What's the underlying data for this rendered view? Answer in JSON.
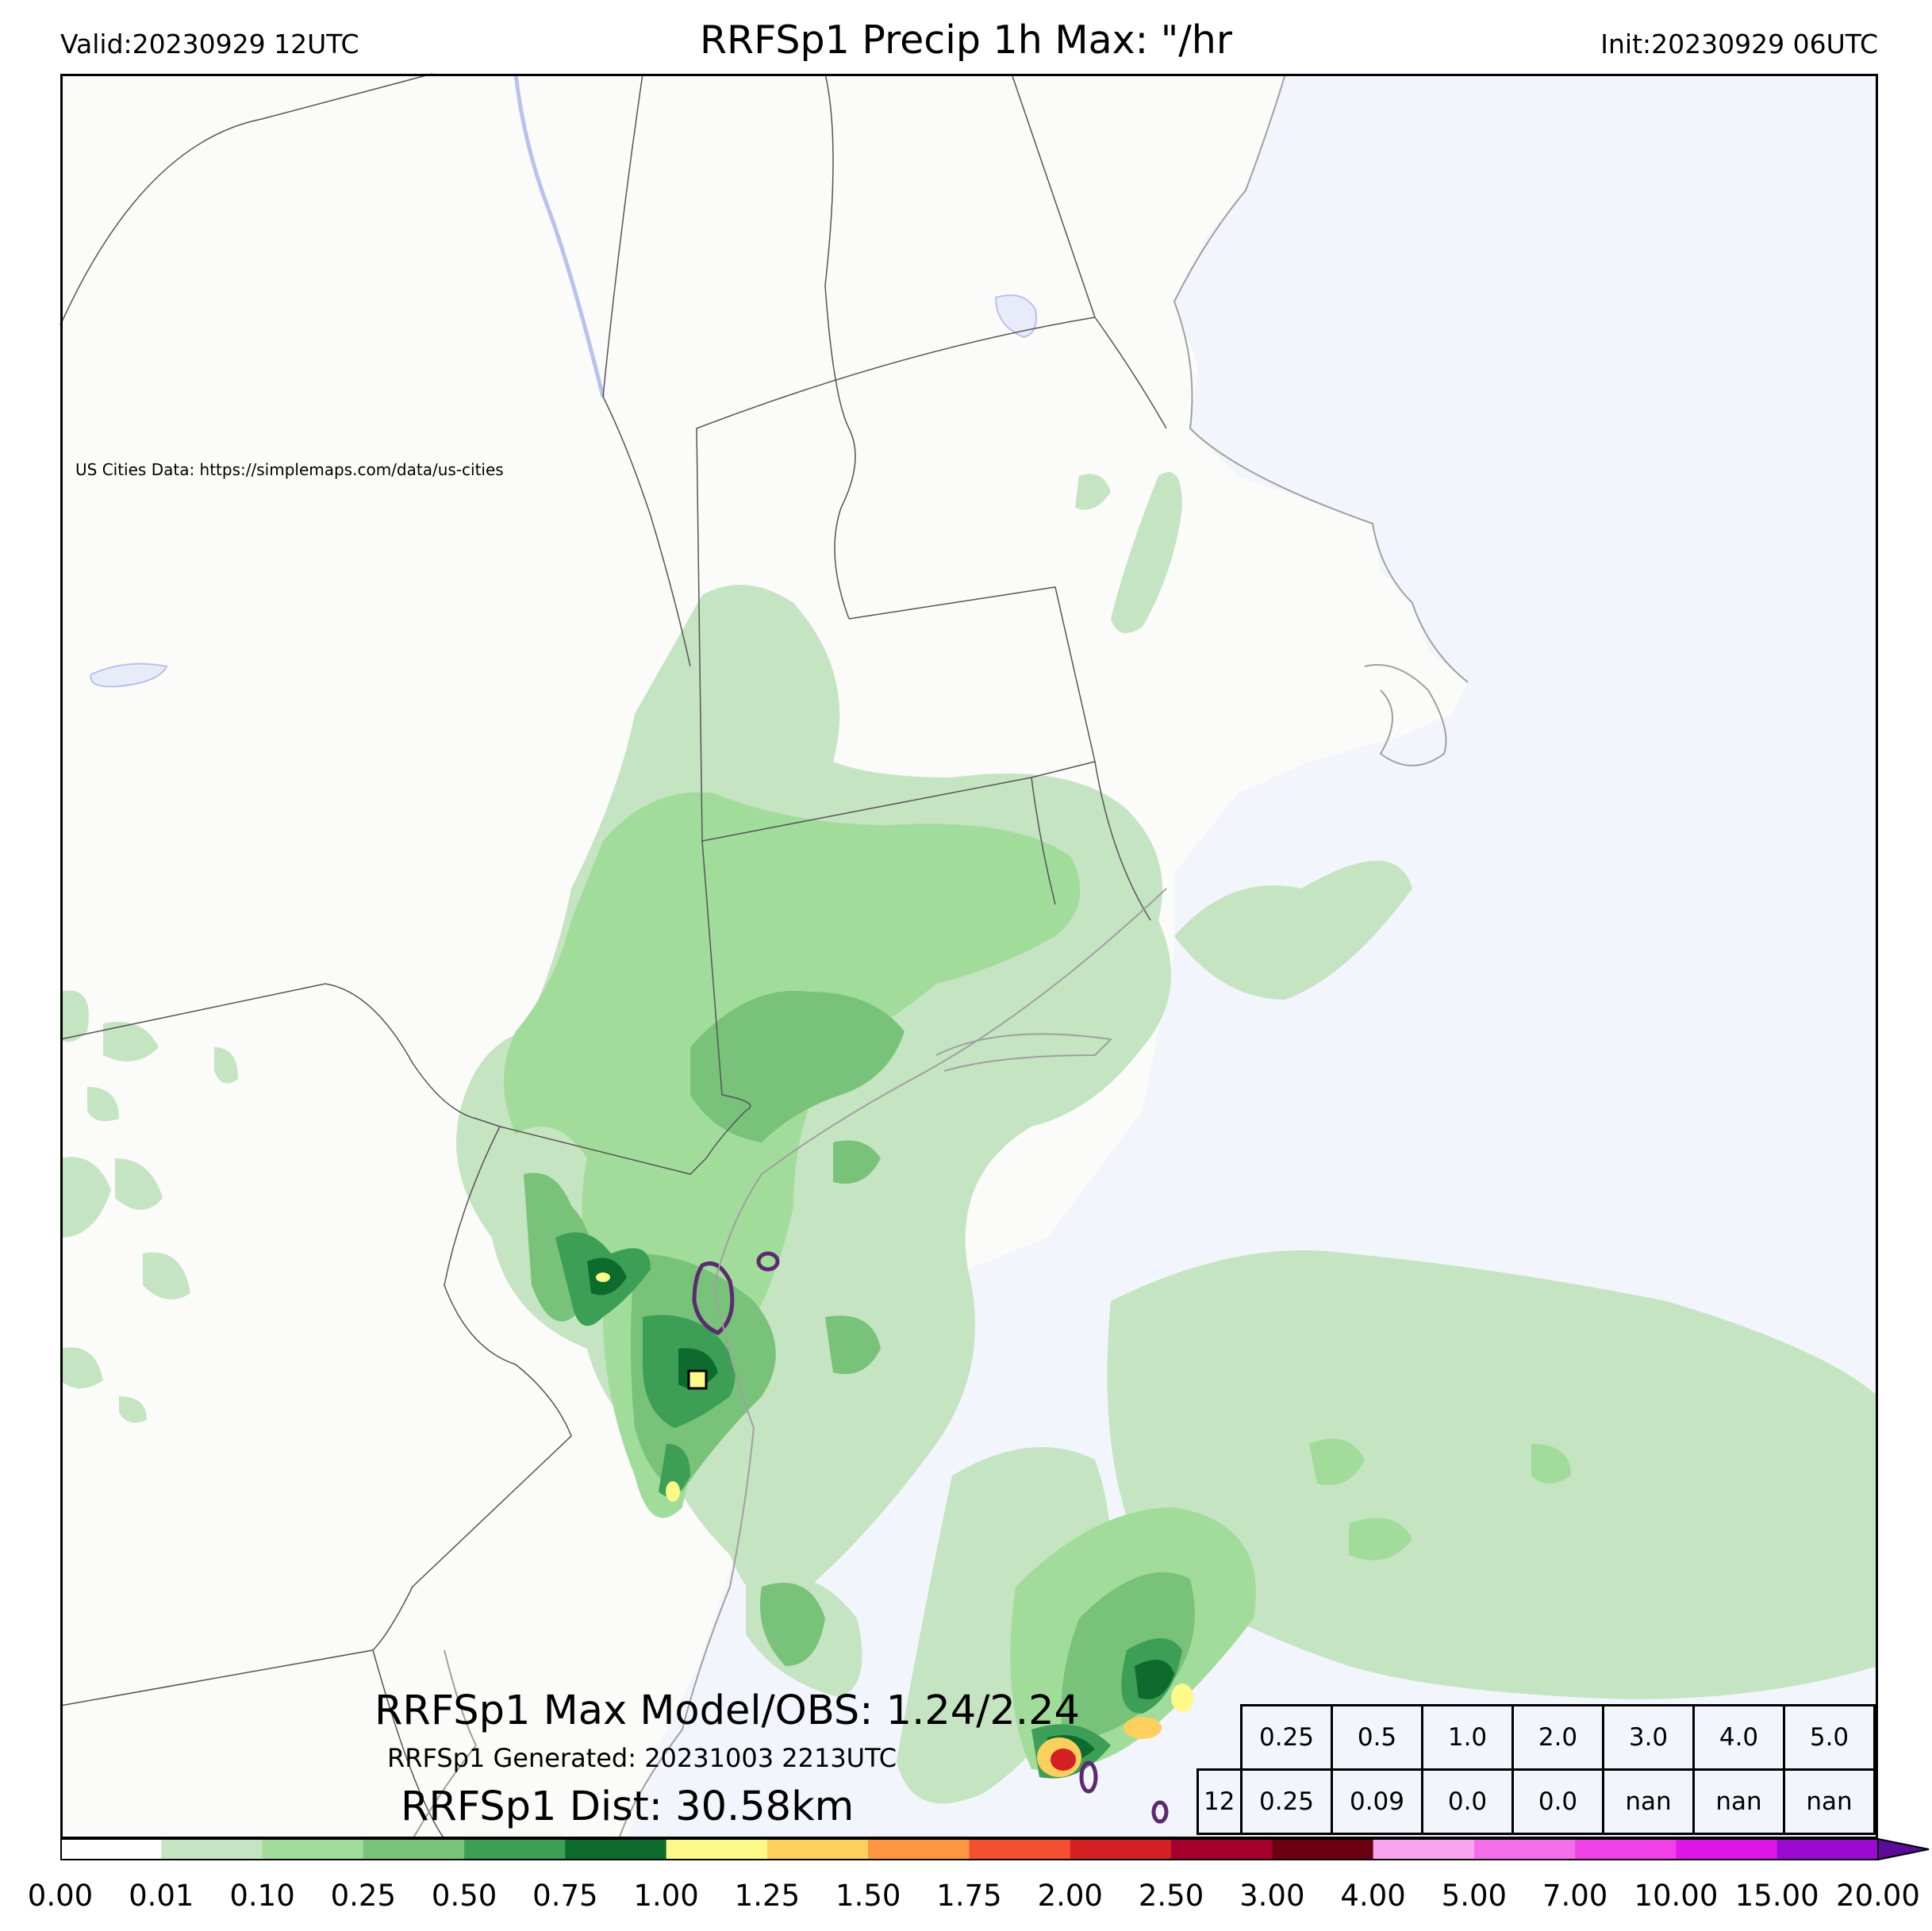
{
  "header": {
    "valid": "Valid:20230929 12UTC",
    "title": "RRFSp1 Precip 1h Max: \"/hr",
    "init": "Init:20230929 06UTC"
  },
  "map": {
    "credit": "US Cities Data: https://simplemaps.com/data/us-cities",
    "colors": {
      "land": "#fbfbf9",
      "water": "#f2f5fb",
      "border": "#555555",
      "lakes": "#e8ecf8"
    }
  },
  "stats": {
    "max_line": "RRFSp1 Max Model/OBS: 1.24/2.24",
    "generated": "RRFSp1 Generated: 20231003 2213UTC",
    "dist": "RRFSp1 Dist: 30.58km",
    "table": {
      "thresholds": [
        "0.25",
        "0.5",
        "1.0",
        "2.0",
        "3.0",
        "4.0",
        "5.0"
      ],
      "row_label": "12",
      "values": [
        "0.25",
        "0.09",
        "0.0",
        "0.0",
        "nan",
        "nan",
        "nan"
      ]
    }
  },
  "colorbar": {
    "ticks": [
      "0.00",
      "0.01",
      "0.10",
      "0.25",
      "0.50",
      "0.75",
      "1.00",
      "1.25",
      "1.50",
      "1.75",
      "2.00",
      "2.50",
      "3.00",
      "4.00",
      "5.00",
      "7.00",
      "10.00",
      "15.00",
      "20.00"
    ],
    "colors": [
      "#ffffff",
      "#c5e4c2",
      "#a1dc9b",
      "#78c27a",
      "#3c9f55",
      "#0d6b2e",
      "#fdfa8a",
      "#fdcf5c",
      "#fd9541",
      "#f4502f",
      "#d41f23",
      "#a5002d",
      "#6b0010",
      "#f9a5ee",
      "#f46eea",
      "#f040e8",
      "#dc17e8",
      "#9a09d0"
    ],
    "extend_color": "#5c0a9a"
  }
}
